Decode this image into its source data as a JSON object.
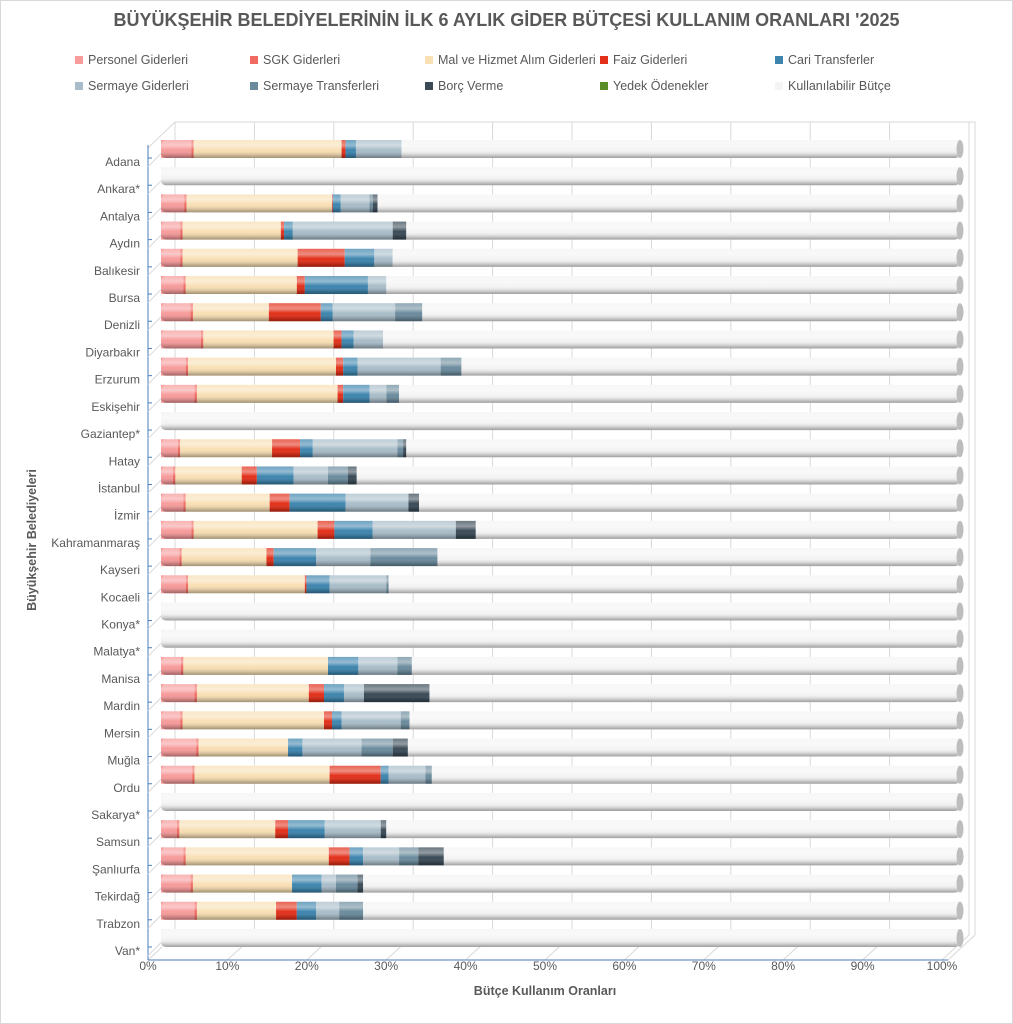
{
  "chart_data": {
    "type": "bar",
    "orientation": "horizontal",
    "stacked": "percent",
    "style": "3d-cylinder",
    "title": "BÜYÜKŞEHİR BELEDİYELERİNİN İLK 6 AYLIK GİDER BÜTÇESİ KULLANIM ORANLARI '2025",
    "xlabel": "Bütçe Kullanım Oranları",
    "ylabel": "Büyükşehir Belediyeleri",
    "xlim": [
      0,
      100
    ],
    "x_ticks": [
      "0%",
      "10%",
      "20%",
      "30%",
      "40%",
      "50%",
      "60%",
      "70%",
      "80%",
      "90%",
      "100%"
    ],
    "grid": true,
    "legend_position": "top",
    "categories": [
      "Adana",
      "Ankara*",
      "Antalya",
      "Aydın",
      "Balıkesir",
      "Bursa",
      "Denizli",
      "Diyarbakır",
      "Erzurum",
      "Eskişehir",
      "Gaziantep*",
      "Hatay",
      "İstanbul",
      "İzmir",
      "Kahramanmaraş",
      "Kayseri",
      "Kocaeli",
      "Konya*",
      "Malatya*",
      "Manisa",
      "Mardin",
      "Mersin",
      "Muğla",
      "Ordu",
      "Sakarya*",
      "Samsun",
      "Şanlıurfa",
      "Tekirdağ",
      "Trabzon",
      "Van*"
    ],
    "series": [
      {
        "name": "Personel Giderleri",
        "color": "#F79B9B",
        "values": [
          3.8,
          0,
          2.9,
          2.4,
          2.4,
          2.8,
          3.7,
          5.0,
          3.1,
          4.2,
          0,
          2.1,
          1.5,
          2.8,
          3.8,
          2.3,
          3.1,
          0,
          0,
          2.5,
          4.2,
          2.4,
          4.4,
          3.9,
          0,
          2.0,
          2.8,
          3.7,
          4.2,
          0
        ]
      },
      {
        "name": "SGK Giderleri",
        "color": "#F06A62",
        "values": [
          0.3,
          0,
          0.3,
          0.3,
          0.3,
          0.3,
          0.3,
          0.3,
          0.3,
          0.3,
          0,
          0.3,
          0.3,
          0.3,
          0.3,
          0.3,
          0.3,
          0,
          0,
          0.3,
          0.3,
          0.3,
          0.3,
          0.3,
          0,
          0.3,
          0.3,
          0.3,
          0.3,
          0
        ]
      },
      {
        "name": "Mal ve Hizmet Alım Giderleri",
        "color": "#F8DFB4",
        "values": [
          18.5,
          0,
          18.2,
          12.3,
          14.4,
          13.9,
          9.5,
          16.3,
          18.5,
          17.6,
          0,
          11.5,
          8.3,
          10.5,
          15.5,
          10.6,
          14.6,
          0,
          0,
          18.1,
          14.0,
          17.7,
          11.2,
          16.9,
          0,
          12.0,
          17.9,
          12.4,
          9.9,
          0
        ]
      },
      {
        "name": "Faiz Giderleri",
        "color": "#E2301A",
        "values": [
          0.5,
          0,
          0.1,
          0.4,
          5.9,
          1.0,
          6.5,
          1.0,
          0.9,
          0.7,
          0,
          3.5,
          1.9,
          2.5,
          2.1,
          0.9,
          0.2,
          0,
          0,
          0,
          1.9,
          1.0,
          0,
          6.4,
          0,
          1.6,
          2.6,
          0,
          2.6,
          0
        ]
      },
      {
        "name": "Cari Transferler",
        "color": "#3E85AE",
        "values": [
          1.3,
          0,
          1.0,
          1.1,
          3.7,
          7.9,
          1.5,
          1.5,
          1.8,
          3.3,
          0,
          1.6,
          4.6,
          7.0,
          4.8,
          5.3,
          2.9,
          0,
          0,
          3.8,
          2.5,
          1.2,
          1.8,
          1.0,
          0,
          4.6,
          1.7,
          3.7,
          2.4,
          0
        ]
      },
      {
        "name": "Sermaye Giderleri",
        "color": "#A9BDC9",
        "values": [
          5.7,
          0,
          3.6,
          12.5,
          2.3,
          2.3,
          7.8,
          3.7,
          10.4,
          2.1,
          0,
          10.6,
          4.3,
          7.8,
          10.4,
          6.8,
          7.1,
          0,
          0,
          4.9,
          2.5,
          7.4,
          7.4,
          4.6,
          0,
          7.0,
          4.5,
          1.8,
          2.9,
          0
        ]
      },
      {
        "name": "Sermaye Transferleri",
        "color": "#6B8B9D",
        "values": [
          0,
          0,
          0.4,
          0,
          0,
          0,
          3.4,
          0,
          2.6,
          1.6,
          0,
          0.7,
          2.5,
          0.1,
          0,
          8.4,
          0.3,
          0,
          0,
          1.8,
          0,
          1.1,
          3.9,
          0.8,
          0,
          0,
          2.4,
          2.7,
          3.0,
          0
        ]
      },
      {
        "name": "Borç Verme",
        "color": "#3A4B57",
        "values": [
          0,
          0,
          0.6,
          1.7,
          0,
          0,
          0,
          0,
          0,
          0,
          0,
          0.4,
          1.1,
          1.3,
          2.5,
          0,
          0,
          0,
          0,
          0,
          8.2,
          0,
          1.9,
          0,
          0,
          0.7,
          3.2,
          0.7,
          0,
          0
        ]
      },
      {
        "name": "Yedek Ödenekler",
        "color": "#5B8C2A",
        "values": [
          0,
          0,
          0,
          0,
          0,
          0,
          0,
          0,
          0,
          0,
          0,
          0,
          0,
          0,
          0,
          0,
          0,
          0,
          0,
          0,
          0,
          0,
          0,
          0,
          0,
          0,
          0,
          0,
          0,
          0
        ]
      },
      {
        "name": "Kullanılabilir Bütçe",
        "color": "#F4F4F4",
        "values": "remainder-to-100"
      }
    ]
  }
}
